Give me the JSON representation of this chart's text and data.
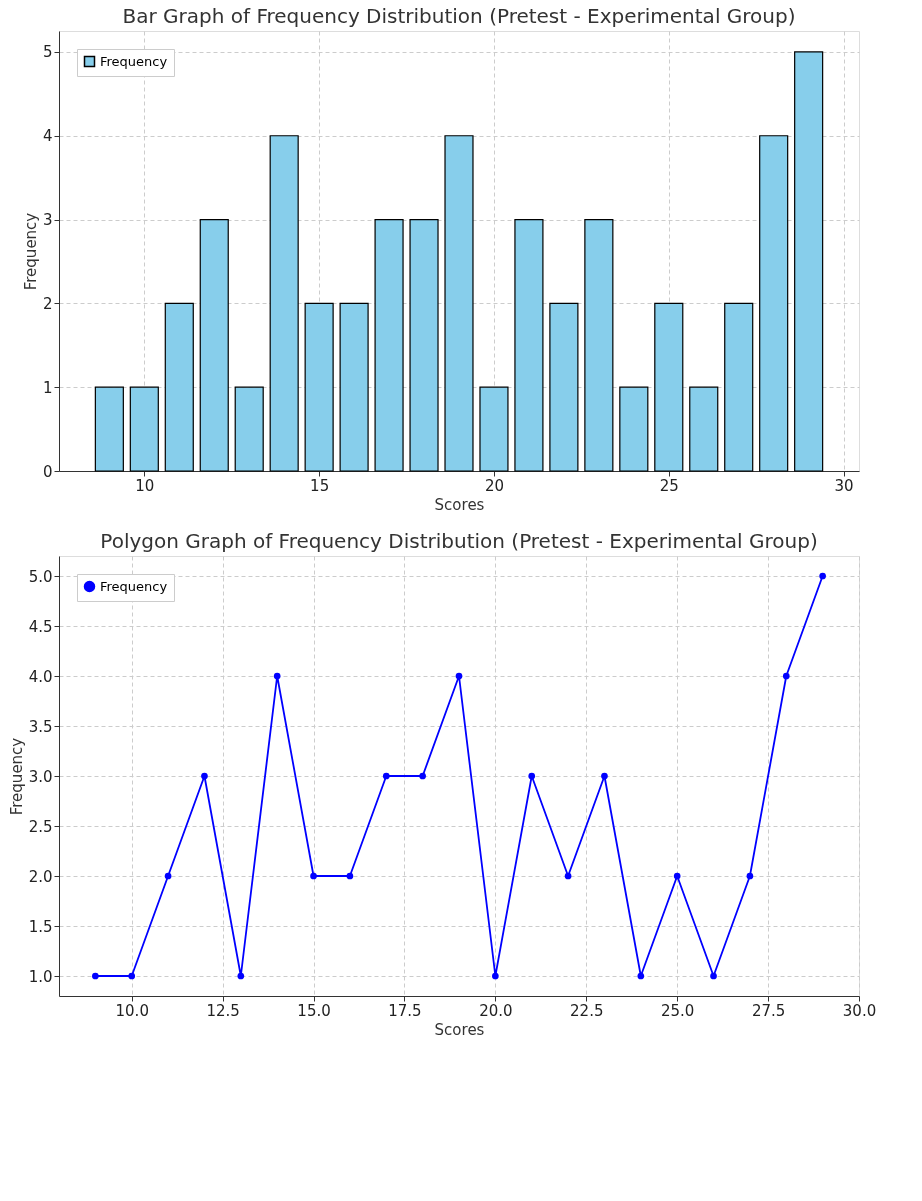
{
  "chart_data": [
    {
      "type": "bar",
      "title": "Bar Graph of Frequency Distribution (Pretest - Experimental Group)",
      "xlabel": "Scores",
      "ylabel": "Frequency",
      "x": [
        9,
        10,
        11,
        12,
        13,
        14,
        15,
        16,
        17,
        18,
        19,
        20,
        21,
        22,
        23,
        24,
        25,
        26,
        27,
        28,
        29
      ],
      "series": [
        {
          "name": "Frequency",
          "color": "#87ceeb",
          "values": [
            1,
            1,
            2,
            3,
            1,
            4,
            2,
            2,
            3,
            3,
            4,
            1,
            3,
            2,
            3,
            1,
            2,
            1,
            2,
            4,
            5
          ]
        }
      ],
      "xlim": [
        7.56,
        30.44
      ],
      "xticks": [
        10,
        15,
        20,
        25,
        30
      ],
      "ylim": [
        0,
        5.25
      ],
      "yticks": [
        0,
        1,
        2,
        3,
        4,
        5
      ],
      "grid": true,
      "legend": "top left"
    },
    {
      "type": "line",
      "title": "Polygon Graph of Frequency Distribution (Pretest - Experimental Group)",
      "xlabel": "Scores",
      "ylabel": "Frequency",
      "x": [
        9,
        10,
        11,
        12,
        13,
        14,
        15,
        16,
        17,
        18,
        19,
        20,
        21,
        22,
        23,
        24,
        25,
        26,
        27,
        28,
        29
      ],
      "series": [
        {
          "name": "Frequency",
          "color": "#0000ff",
          "values": [
            1,
            1,
            2,
            3,
            1,
            4,
            2,
            2,
            3,
            3,
            4,
            1,
            3,
            2,
            3,
            1,
            2,
            1,
            2,
            4,
            5
          ]
        }
      ],
      "xlim": [
        8,
        30
      ],
      "xticks": [
        {
          "value": 10,
          "label": "10.0"
        },
        {
          "value": 12.5,
          "label": "12.5"
        },
        {
          "value": 15,
          "label": "15.0"
        },
        {
          "value": 17.5,
          "label": "17.5"
        },
        {
          "value": 20,
          "label": "20.0"
        },
        {
          "value": 22.5,
          "label": "22.5"
        },
        {
          "value": 25,
          "label": "25.0"
        },
        {
          "value": 27.5,
          "label": "27.5"
        },
        {
          "value": 30,
          "label": "30.0"
        }
      ],
      "ylim": [
        0.8,
        5.2
      ],
      "yticks": [
        {
          "value": 1,
          "label": "1.0"
        },
        {
          "value": 1.5,
          "label": "1.5"
        },
        {
          "value": 2,
          "label": "2.0"
        },
        {
          "value": 2.5,
          "label": "2.5"
        },
        {
          "value": 3,
          "label": "3.0"
        },
        {
          "value": 3.5,
          "label": "3.5"
        },
        {
          "value": 4,
          "label": "4.0"
        },
        {
          "value": 4.5,
          "label": "4.5"
        },
        {
          "value": 5,
          "label": "5.0"
        }
      ],
      "grid": true,
      "legend": "top left",
      "marker": "circle",
      "line_style": "solid"
    }
  ]
}
